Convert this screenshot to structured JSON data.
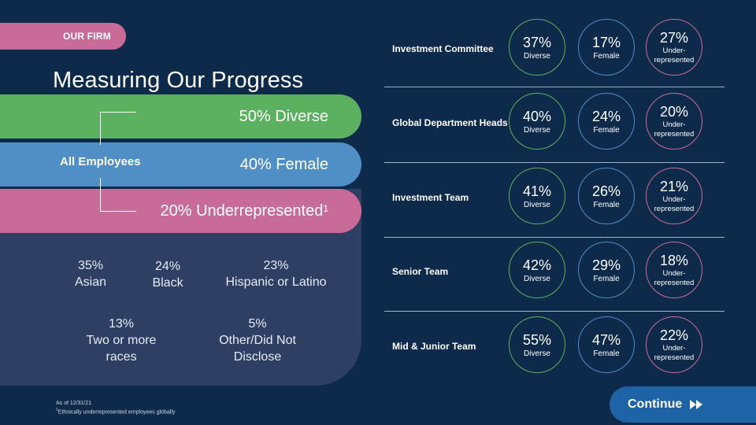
{
  "tag": "OUR FIRM",
  "title": "Measuring Our Progress",
  "all_employees": {
    "label": "All Employees",
    "diverse": "50% Diverse",
    "female": "40% Female",
    "underrepresented": "20% Underrepresented",
    "underrepresented_note_mark": "1"
  },
  "breakdown": [
    {
      "pct": "35%",
      "label": "Asian"
    },
    {
      "pct": "24%",
      "label": "Black"
    },
    {
      "pct": "23%",
      "label": "Hispanic or Latino"
    },
    {
      "pct": "13%",
      "label": "Two or more races"
    },
    {
      "pct": "5%",
      "label": "Other/Did Not Disclose"
    }
  ],
  "footnote": {
    "date": "As of 12/31/21",
    "mark": "1",
    "text": "Ethnically underrepresented employees globally"
  },
  "groups": [
    {
      "name": "Investment Committee",
      "diverse": "37%",
      "female": "17%",
      "under": "27%"
    },
    {
      "name": "Global Department Heads",
      "diverse": "40%",
      "female": "24%",
      "under": "20%"
    },
    {
      "name": "Investment Team",
      "diverse": "41%",
      "female": "26%",
      "under": "21%"
    },
    {
      "name": "Senior Team",
      "diverse": "42%",
      "female": "29%",
      "under": "18%"
    },
    {
      "name": "Mid & Junior Team",
      "diverse": "55%",
      "female": "47%",
      "under": "22%"
    }
  ],
  "labels": {
    "diverse": "Diverse",
    "female": "Female",
    "under_line1": "Under-",
    "under_line2": "represented"
  },
  "continue_label": "Continue",
  "colors": {
    "background": "#0d2a4a",
    "green": "#5cb160",
    "blue": "#4f8fc6",
    "pink": "#c96b99",
    "panel": "#2f3e63",
    "button": "#1e63a6"
  }
}
